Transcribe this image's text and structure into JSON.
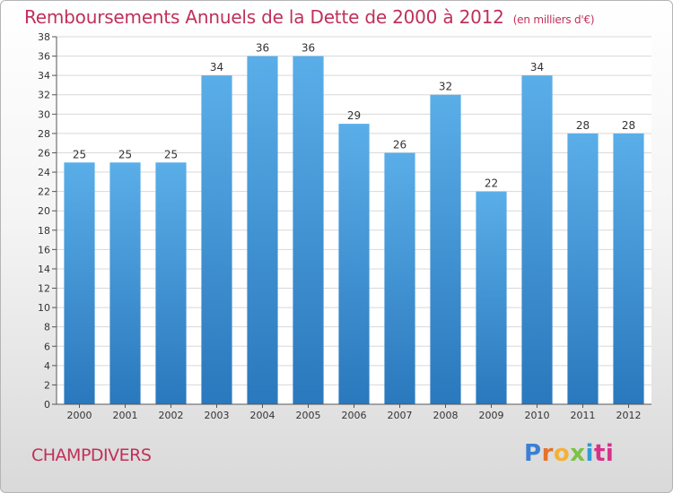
{
  "header": {
    "title": "Remboursements Annuels de la Dette de 2000 à 2012",
    "unit": "(en milliers d'€)"
  },
  "footer": {
    "city": "CHAMPDIVERS",
    "logo_letters": [
      "P",
      "r",
      "o",
      "x",
      "i",
      "ti"
    ]
  },
  "chart_data": {
    "type": "bar",
    "title": "Remboursements Annuels de la Dette de 2000 à 2012",
    "subtitle": "(en milliers d'€)",
    "xlabel": "",
    "ylabel": "",
    "categories": [
      "2000",
      "2001",
      "2002",
      "2003",
      "2004",
      "2005",
      "2006",
      "2007",
      "2008",
      "2009",
      "2010",
      "2011",
      "2012"
    ],
    "values": [
      25,
      25,
      25,
      34,
      36,
      36,
      29,
      26,
      32,
      22,
      34,
      28,
      28
    ],
    "ylim": [
      0,
      38
    ],
    "yticks": [
      0,
      2,
      4,
      6,
      8,
      10,
      12,
      14,
      16,
      18,
      20,
      22,
      24,
      26,
      28,
      30,
      32,
      34,
      36,
      38
    ],
    "grid": true,
    "legend": "none",
    "colors": {
      "bar_top": "#5aaee8",
      "bar_bottom": "#2a78bd",
      "grid": "#d8d8d8"
    }
  }
}
